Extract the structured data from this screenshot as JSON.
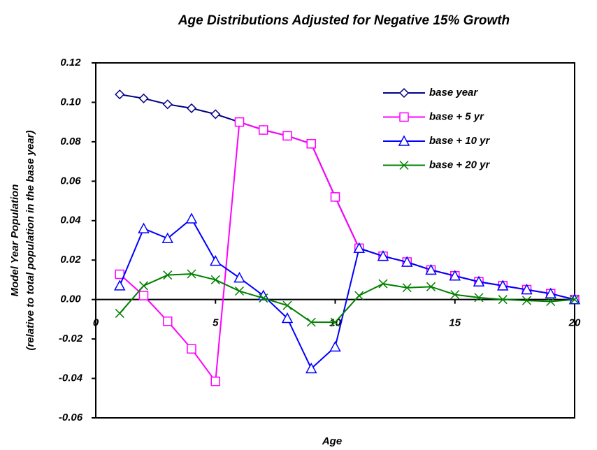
{
  "chart_data": {
    "type": "line",
    "title": "Age Distributions Adjusted for Negative 15% Growth",
    "x_label": "Age",
    "y_label": [
      "Model Year Population",
      "(relative to total population in the base year)"
    ],
    "x": [
      1,
      2,
      3,
      4,
      5,
      6,
      7,
      8,
      9,
      10,
      11,
      12,
      13,
      14,
      15,
      16,
      17,
      18,
      19,
      20
    ],
    "series": [
      {
        "name": "base year",
        "color": "#000080",
        "marker": "diamond",
        "values": [
          0.104,
          0.102,
          0.099,
          0.097,
          0.094,
          0.09,
          0.086,
          0.083,
          0.079,
          0.052,
          0.026,
          0.022,
          0.019,
          0.015,
          0.012,
          0.009,
          0.007,
          0.005,
          0.003,
          0.0
        ]
      },
      {
        "name": "base + 5 yr",
        "color": "#ff00ff",
        "marker": "square",
        "values": [
          0.0128,
          0.002,
          -0.011,
          -0.025,
          -0.0415,
          0.09,
          0.086,
          0.083,
          0.079,
          0.052,
          0.026,
          0.022,
          0.019,
          0.015,
          0.012,
          0.009,
          0.007,
          0.005,
          0.003,
          0.0
        ]
      },
      {
        "name": "base + 10 yr",
        "color": "#0000ff",
        "marker": "triangle",
        "values": [
          0.007,
          0.036,
          0.031,
          0.041,
          0.0195,
          0.011,
          0.002,
          -0.0095,
          -0.035,
          -0.024,
          0.026,
          0.022,
          0.019,
          0.015,
          0.012,
          0.009,
          0.007,
          0.005,
          0.003,
          0.0
        ]
      },
      {
        "name": "base + 20 yr",
        "color": "#008000",
        "marker": "x",
        "values": [
          -0.007,
          0.007,
          0.0124,
          0.013,
          0.01,
          0.0043,
          0.0007,
          -0.003,
          -0.0115,
          -0.0115,
          0.002,
          0.008,
          0.006,
          0.0065,
          0.0025,
          0.001,
          0.0,
          -0.0005,
          -0.001,
          0.0
        ]
      }
    ],
    "xlim": [
      0,
      20
    ],
    "xticks": [
      0,
      5,
      10,
      15,
      20
    ],
    "ylim": [
      -0.06,
      0.12
    ],
    "yticks": [
      {
        "value": -0.06,
        "label": "-0.06"
      },
      {
        "value": -0.04,
        "label": "-0.04"
      },
      {
        "value": -0.02,
        "label": "-0.02"
      },
      {
        "value": 0,
        "label": "0.00"
      },
      {
        "value": 0.02,
        "label": "0.02"
      },
      {
        "value": 0.04,
        "label": "0.04"
      },
      {
        "value": 0.06,
        "label": "0.06"
      },
      {
        "value": 0.08,
        "label": "0.08"
      },
      {
        "value": 0.1,
        "label": "0.10"
      },
      {
        "value": 0.12,
        "label": "0.12"
      }
    ],
    "legend": "upper-right"
  }
}
